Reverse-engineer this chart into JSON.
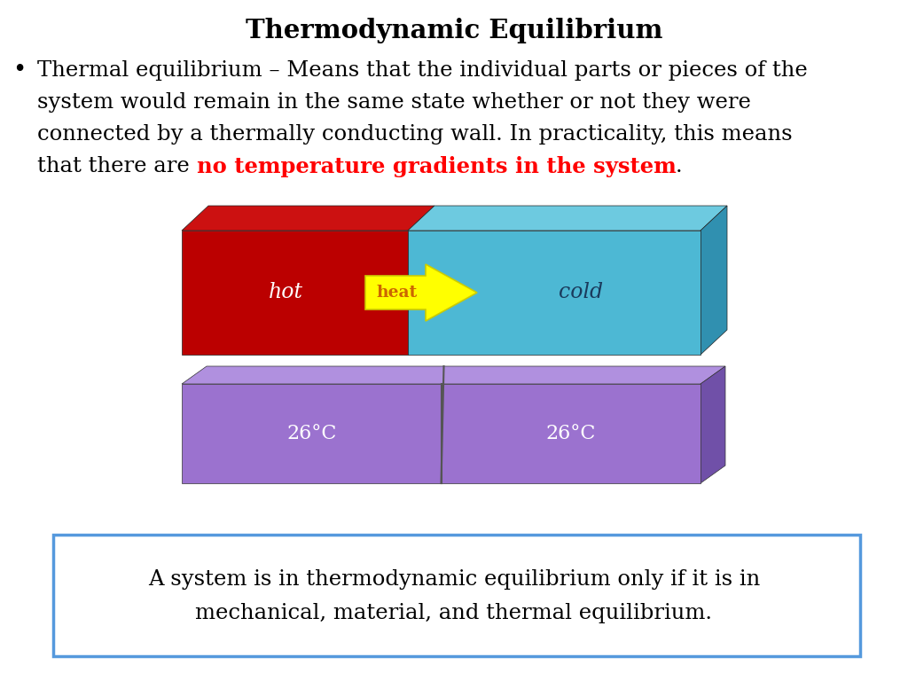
{
  "title": "Thermodynamic Equilibrium",
  "line1": "Thermal equilibrium – Means that the individual parts or pieces of the",
  "line2": "system would remain in the same state whether or not they were",
  "line3": "connected by a thermally conducting wall. In practicality, this means",
  "line4a": "that there are ",
  "line4b": "no temperature gradients in the system",
  "line4c": ".",
  "box1_left_color": "#bb0000",
  "box1_right_color": "#4db8d4",
  "box1_top_left_color": "#cc1111",
  "box1_top_right_color": "#6dcae0",
  "box1_right_face_color": "#3090b0",
  "box2_front_color": "#9b72cf",
  "box2_top_color": "#b090df",
  "box2_right_color": "#7050a8",
  "arrow_fill": "#ffff00",
  "arrow_edge": "#cccc00",
  "arrow_text_color": "#cc6600",
  "hot_label": "hot",
  "cold_label": "cold",
  "heat_label": "heat",
  "temp_label": "26°C",
  "footer_line1": "A system is in thermodynamic equilibrium only if it is in",
  "footer_line2": "mechanical, material, and thermal equilibrium.",
  "footer_border_color": "#5599dd",
  "bg_color": "#ffffff"
}
